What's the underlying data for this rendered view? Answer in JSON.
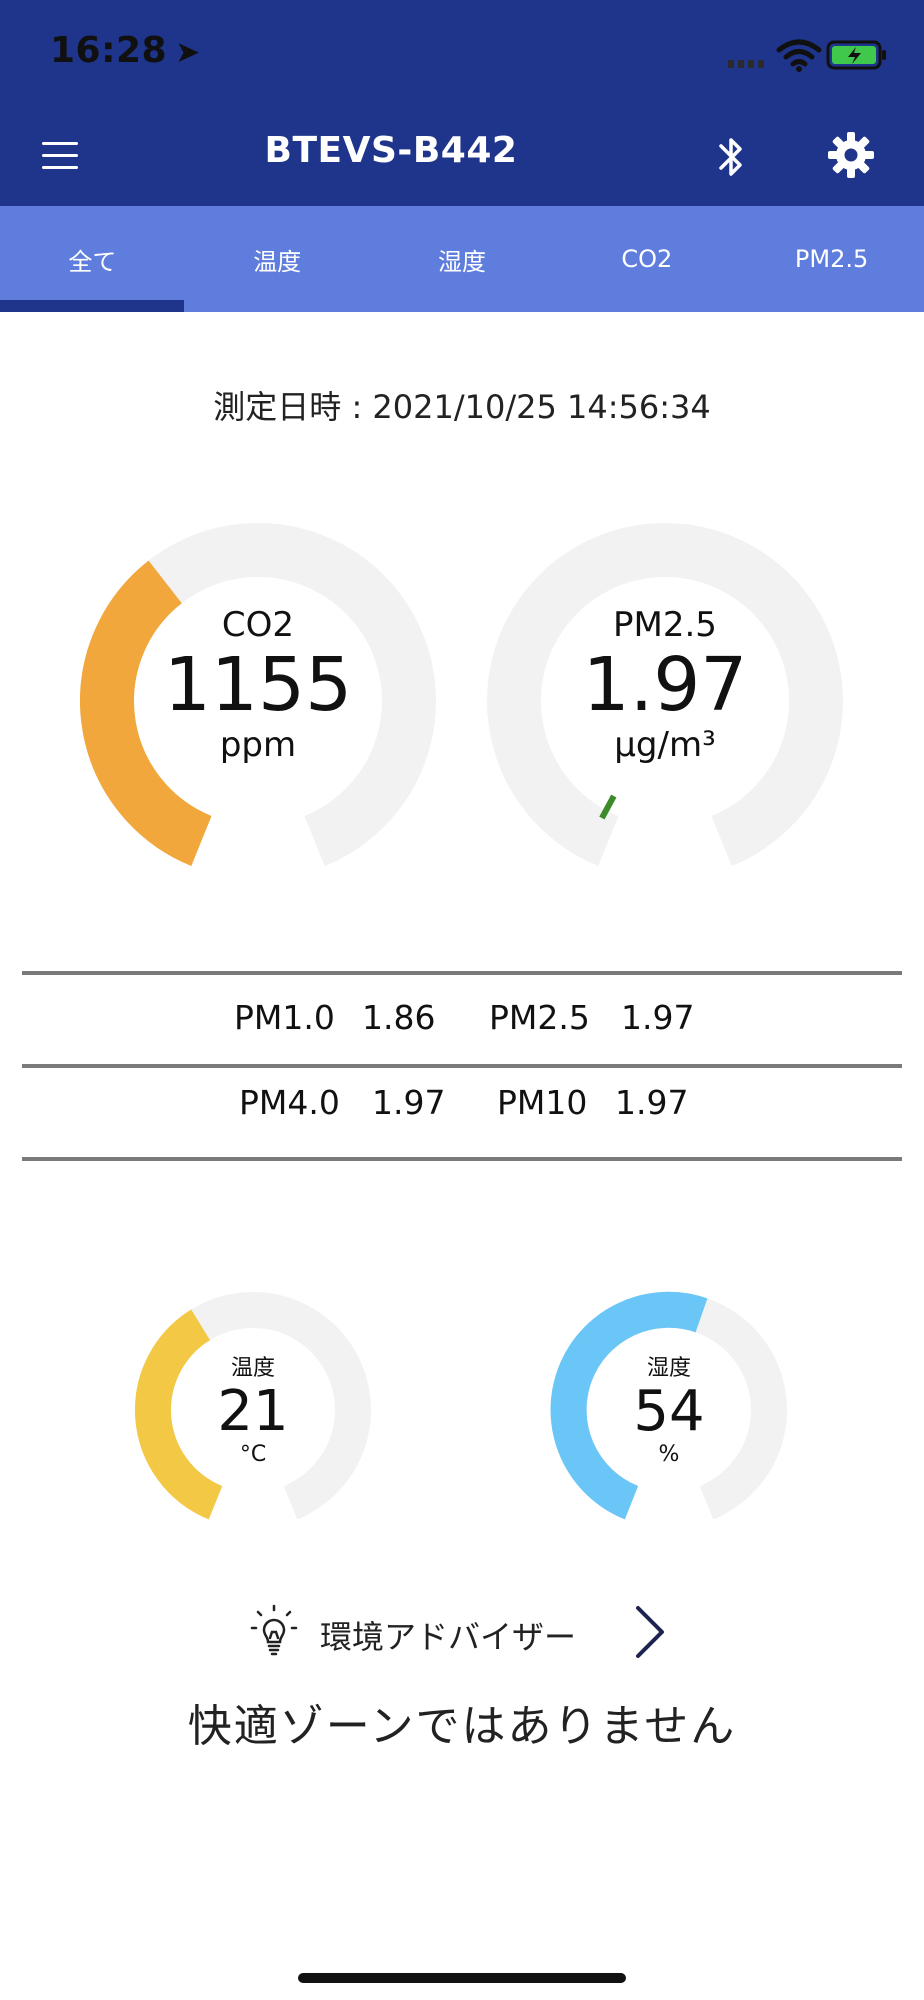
{
  "status_bar": {
    "time": "16:28"
  },
  "header": {
    "title": "BTEVS-B442"
  },
  "tabs": [
    {
      "label": "全て",
      "selected": true
    },
    {
      "label": "温度",
      "selected": false
    },
    {
      "label": "湿度",
      "selected": false
    },
    {
      "label": "CO2",
      "selected": false
    },
    {
      "label": "PM2.5",
      "selected": false
    }
  ],
  "measurement": {
    "datetime_text": "測定日時 : 2021/10/25 14:56:34"
  },
  "gauges": {
    "co2": {
      "label": "CO2",
      "value": "1155",
      "unit": "ppm",
      "fill_fraction": 0.38,
      "color": "#f1a73c"
    },
    "pm25": {
      "label": "PM2.5",
      "value": "1.97",
      "unit": "μg/m³",
      "marker_fraction": 0.02,
      "color": "#3d8a2a"
    },
    "temperature": {
      "label": "温度",
      "value": "21",
      "unit": "°C",
      "fill_fraction": 0.4,
      "color": "#f3c845"
    },
    "humidity": {
      "label": "湿度",
      "value": "54",
      "unit": "%",
      "fill_fraction": 0.56,
      "color": "#69c6f7"
    },
    "track_color": "#f2f2f2"
  },
  "pm_table": {
    "rows": [
      [
        {
          "name": "PM1.0",
          "value": "1.86"
        },
        {
          "name": "PM2.5",
          "value": "1.97"
        }
      ],
      [
        {
          "name": "PM4.0",
          "value": "1.97"
        },
        {
          "name": "PM10",
          "value": "1.97"
        }
      ]
    ]
  },
  "advisor": {
    "label": "環境アドバイザー",
    "message": "快適ゾーンではありません"
  },
  "icons": {
    "menu": "menu-icon",
    "bluetooth": "bluetooth-icon",
    "settings": "gear-icon",
    "advisor": "lightbulb-icon",
    "chevron": "chevron-right-icon"
  }
}
